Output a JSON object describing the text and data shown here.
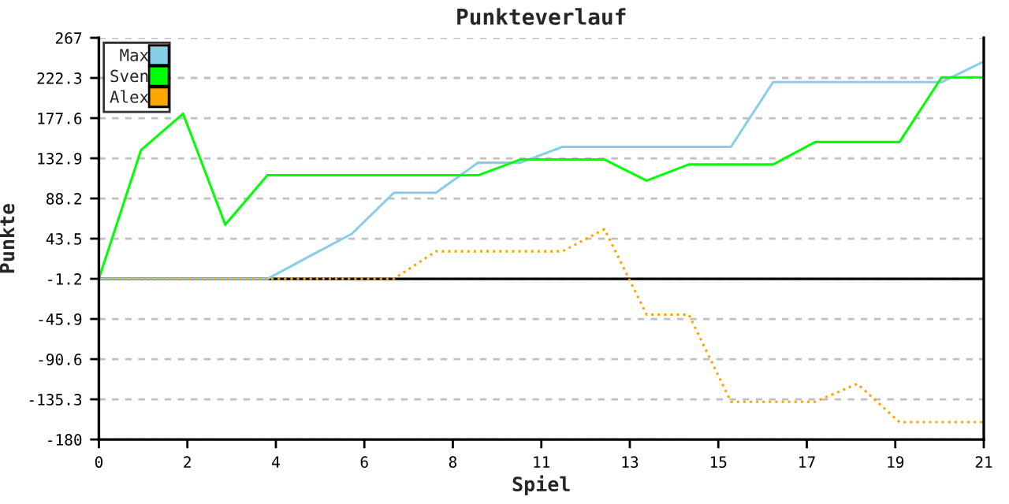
{
  "chart_data": {
    "type": "line",
    "title": "Punkteverlauf",
    "xlabel": "Spiel",
    "ylabel": "Punkte",
    "x": [
      0,
      1,
      2,
      3,
      4,
      5,
      6,
      7,
      8,
      9,
      10,
      11,
      12,
      13,
      14,
      15,
      16,
      17,
      18,
      19,
      20,
      21
    ],
    "series": [
      {
        "name": "Max",
        "color": "#87ceeb",
        "line_style": "solid",
        "values": [
          -1.2,
          -1.2,
          -1.2,
          -1.2,
          -1.2,
          24,
          48.8,
          94.5,
          94.5,
          128,
          128,
          145.6,
          145.6,
          145.6,
          145.6,
          145.6,
          217.7,
          217.7,
          217.7,
          217.7,
          217.7,
          240.6
        ]
      },
      {
        "name": "Sven",
        "color": "#00ff00",
        "line_style": "solid",
        "values": [
          -1.2,
          142,
          182.5,
          59,
          114,
          114,
          114,
          114,
          114,
          114,
          131.5,
          131.5,
          131.5,
          108,
          126,
          126,
          126,
          151,
          151,
          151,
          223,
          223
        ]
      },
      {
        "name": "Alex",
        "color": "#ffa500",
        "line_style": "dotted",
        "values": [
          -1.2,
          -1.2,
          -1.2,
          -1.2,
          -1.2,
          -1.2,
          -1.2,
          -1.2,
          29.4,
          29.4,
          29.4,
          29.4,
          54,
          -41,
          -41,
          -138,
          -138,
          -138,
          -118,
          -160.7,
          -160.7,
          -160.7
        ]
      }
    ],
    "xlim": [
      0,
      21
    ],
    "xticks": [
      0,
      {
        "value": 2.1,
        "label": "2"
      },
      {
        "value": 4.2,
        "label": "4"
      },
      {
        "value": 6.3,
        "label": "6"
      },
      {
        "value": 8.4,
        "label": "8"
      },
      {
        "value": 10.5,
        "label": "11"
      },
      {
        "value": 12.6,
        "label": "13"
      },
      {
        "value": 14.7,
        "label": "15"
      },
      {
        "value": 16.8,
        "label": "17"
      },
      {
        "value": 18.9,
        "label": "19"
      },
      21
    ],
    "ylim": [
      -180,
      267
    ],
    "yticks": [
      -180,
      -135.3,
      -90.6,
      -45.9,
      -1.2,
      43.5,
      88.2,
      132.9,
      177.6,
      222.3,
      267
    ],
    "ref_lines": [
      {
        "axis": "y",
        "value": -1.2,
        "color": "#000000"
      }
    ],
    "grid": "y",
    "legend": "top left",
    "marker": "none"
  }
}
